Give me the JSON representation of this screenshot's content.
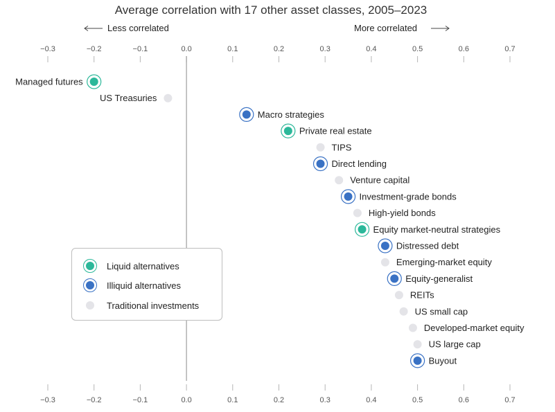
{
  "chart_data": {
    "type": "scatter",
    "title": "Average correlation with 17 other asset classes, 2005–2023",
    "direction_left": "Less correlated",
    "direction_right": "More correlated",
    "x_ticks": [
      "−0.3",
      "−0.2",
      "−0.1",
      "0.0",
      "0.1",
      "0.2",
      "0.3",
      "0.4",
      "0.5",
      "0.6",
      "0.7"
    ],
    "x_tick_values": [
      -0.3,
      -0.2,
      -0.1,
      0.0,
      0.1,
      0.2,
      0.3,
      0.4,
      0.5,
      0.6,
      0.7
    ],
    "xlim": [
      -0.3,
      0.7
    ],
    "grid": false,
    "legend_position": "lower-left",
    "colors": {
      "liquid": "#2cb89a",
      "illiquid": "#3a72c4",
      "traditional": "#e4e4e8"
    },
    "legend": [
      {
        "key": "liquid",
        "label": "Liquid alternatives"
      },
      {
        "key": "illiquid",
        "label": "Illiquid alternatives"
      },
      {
        "key": "traditional",
        "label": "Traditional investments"
      }
    ],
    "points": [
      {
        "label": "Managed futures",
        "value": -0.2,
        "category": "liquid",
        "label_side": "left"
      },
      {
        "label": "US Treasuries",
        "value": -0.04,
        "category": "traditional",
        "label_side": "left"
      },
      {
        "label": "Macro strategies",
        "value": 0.13,
        "category": "illiquid",
        "label_side": "right"
      },
      {
        "label": "Private real estate",
        "value": 0.22,
        "category": "liquid",
        "label_side": "right"
      },
      {
        "label": "TIPS",
        "value": 0.29,
        "category": "traditional",
        "label_side": "right"
      },
      {
        "label": "Direct lending",
        "value": 0.29,
        "category": "illiquid",
        "label_side": "right"
      },
      {
        "label": "Venture capital",
        "value": 0.33,
        "category": "traditional",
        "label_side": "right"
      },
      {
        "label": "Investment-grade bonds",
        "value": 0.35,
        "category": "illiquid",
        "label_side": "right"
      },
      {
        "label": "High-yield bonds",
        "value": 0.37,
        "category": "traditional",
        "label_side": "right"
      },
      {
        "label": "Equity market-neutral strategies",
        "value": 0.38,
        "category": "liquid",
        "label_side": "right"
      },
      {
        "label": "Distressed debt",
        "value": 0.43,
        "category": "illiquid",
        "label_side": "right"
      },
      {
        "label": "Emerging-market equity",
        "value": 0.43,
        "category": "traditional",
        "label_side": "right"
      },
      {
        "label": "Equity-generalist",
        "value": 0.45,
        "category": "illiquid",
        "label_side": "right"
      },
      {
        "label": "REITs",
        "value": 0.46,
        "category": "traditional",
        "label_side": "right"
      },
      {
        "label": "US small cap",
        "value": 0.47,
        "category": "traditional",
        "label_side": "right"
      },
      {
        "label": "Developed-market equity",
        "value": 0.49,
        "category": "traditional",
        "label_side": "right"
      },
      {
        "label": "US large cap",
        "value": 0.5,
        "category": "traditional",
        "label_side": "right"
      },
      {
        "label": "Buyout",
        "value": 0.5,
        "category": "illiquid",
        "label_side": "right"
      }
    ]
  }
}
